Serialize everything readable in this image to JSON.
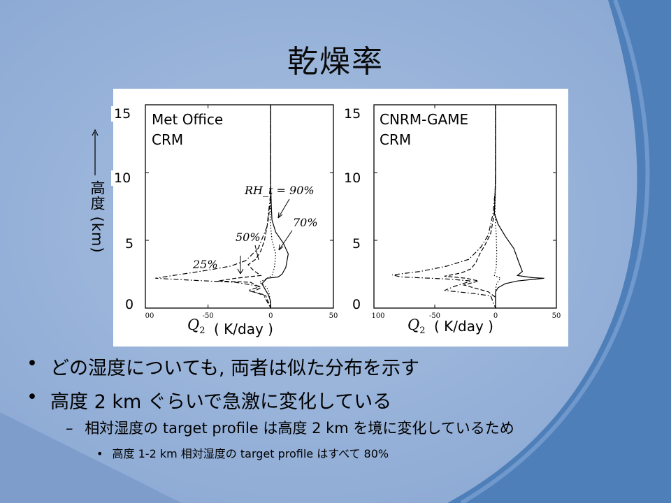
{
  "slide": {
    "title": "乾燥率",
    "colors": {
      "background": "#8aa7d2",
      "swoosh": "#4f7fb9",
      "panel": "#ffffff"
    }
  },
  "figure": {
    "y_axis_label": "高度 (km)",
    "y_axis_arrow_icon": "up-arrow",
    "x_axis_symbol": "Q",
    "x_axis_symbol_sub": "2",
    "x_axis_unit": "( K/day )",
    "y_ticks": [
      "0",
      "5",
      "10",
      "15"
    ]
  },
  "chart_data": [
    {
      "type": "line",
      "panel_label": "Met Office\nCRM",
      "xlabel": "Q2 ( K/day )",
      "ylabel": "高度 (km)",
      "xlim": [
        -100,
        50
      ],
      "ylim": [
        0,
        15
      ],
      "x_ticks": [
        "00",
        "-50",
        "0",
        "50"
      ],
      "y_ticks": [
        0,
        5,
        10,
        15
      ],
      "annotations": [
        "RH_t = 90%",
        "70%",
        "50%",
        "25%"
      ],
      "series": [
        {
          "name": "90%",
          "style": "solid",
          "points": [
            [
              0,
              15
            ],
            [
              0,
              9.0
            ],
            [
              0.5,
              7.5
            ],
            [
              1,
              6.5
            ],
            [
              4,
              5.6
            ],
            [
              10,
              4.8
            ],
            [
              14,
              4.0
            ],
            [
              12,
              3.0
            ],
            [
              9,
              2.5
            ],
            [
              6,
              2.3
            ],
            [
              -3,
              2.2
            ],
            [
              -5,
              2.0
            ],
            [
              -7,
              1.8
            ],
            [
              -4,
              1.3
            ],
            [
              -2,
              1.0
            ],
            [
              0,
              0.5
            ],
            [
              0,
              0
            ]
          ]
        },
        {
          "name": "70%",
          "style": "dotted",
          "points": [
            [
              0,
              15
            ],
            [
              0,
              8.0
            ],
            [
              -0.5,
              6.5
            ],
            [
              1,
              5.0
            ],
            [
              4,
              4.0
            ],
            [
              3,
              3.0
            ],
            [
              1,
              2.4
            ],
            [
              -3,
              2.2
            ],
            [
              -9,
              1.9
            ],
            [
              -3,
              1.5
            ],
            [
              -1,
              1.0
            ],
            [
              0,
              0
            ]
          ]
        },
        {
          "name": "50%",
          "style": "dashed",
          "points": [
            [
              0,
              15
            ],
            [
              0,
              8.0
            ],
            [
              -2,
              6.5
            ],
            [
              -5,
              5.0
            ],
            [
              -8,
              4.2
            ],
            [
              -12,
              3.6
            ],
            [
              -18,
              3.2
            ],
            [
              -14,
              2.8
            ],
            [
              -8,
              2.4
            ],
            [
              -28,
              2.2
            ],
            [
              -42,
              2.0
            ],
            [
              -16,
              1.9
            ],
            [
              -8,
              1.5
            ],
            [
              -14,
              1.2
            ],
            [
              -4,
              0.9
            ],
            [
              0,
              0
            ]
          ]
        },
        {
          "name": "25%",
          "style": "dash-dot",
          "points": [
            [
              0,
              15
            ],
            [
              0,
              8.5
            ],
            [
              -3,
              6.0
            ],
            [
              -10,
              4.4
            ],
            [
              -20,
              3.5
            ],
            [
              -32,
              3.1
            ],
            [
              -50,
              2.8
            ],
            [
              -78,
              2.4
            ],
            [
              -92,
              2.2
            ],
            [
              -62,
              2.05
            ],
            [
              -28,
              1.9
            ],
            [
              -8,
              1.6
            ],
            [
              -18,
              1.3
            ],
            [
              -6,
              1.0
            ],
            [
              0,
              0
            ]
          ]
        }
      ]
    },
    {
      "type": "line",
      "panel_label": "CNRM-GAME\nCRM",
      "xlabel": "Q2 ( K/day )",
      "ylabel": "高度 (km)",
      "xlim": [
        -100,
        50
      ],
      "ylim": [
        0,
        15
      ],
      "x_ticks": [
        "100",
        "-50",
        "0",
        "50"
      ],
      "y_ticks": [
        0,
        5,
        10,
        15
      ],
      "series": [
        {
          "name": "90%",
          "style": "solid",
          "points": [
            [
              0,
              15
            ],
            [
              0,
              10.0
            ],
            [
              -0.5,
              8.0
            ],
            [
              -1,
              7.0
            ],
            [
              2,
              6.2
            ],
            [
              8,
              5.3
            ],
            [
              15,
              4.4
            ],
            [
              19,
              3.4
            ],
            [
              22,
              2.7
            ],
            [
              18,
              2.4
            ],
            [
              30,
              2.25
            ],
            [
              40,
              2.2
            ],
            [
              18,
              2.0
            ],
            [
              8,
              1.8
            ],
            [
              2,
              1.5
            ],
            [
              0,
              1.2
            ],
            [
              0,
              0
            ]
          ]
        },
        {
          "name": "70%",
          "style": "dotted",
          "points": [
            [
              0,
              15
            ],
            [
              0,
              9.0
            ],
            [
              -0.5,
              7.0
            ],
            [
              0.5,
              5.5
            ],
            [
              1,
              4.0
            ],
            [
              0.5,
              3.0
            ],
            [
              -1,
              2.4
            ],
            [
              4,
              2.2
            ],
            [
              1,
              1.8
            ],
            [
              0,
              1.4
            ],
            [
              0,
              0
            ]
          ]
        },
        {
          "name": "50%",
          "style": "dashed",
          "points": [
            [
              0,
              15
            ],
            [
              0,
              9.5
            ],
            [
              -1,
              7.0
            ],
            [
              -4,
              5.5
            ],
            [
              -9,
              4.6
            ],
            [
              -13,
              4.0
            ],
            [
              -16,
              3.4
            ],
            [
              -20,
              2.9
            ],
            [
              -28,
              2.6
            ],
            [
              -42,
              2.35
            ],
            [
              -24,
              2.2
            ],
            [
              -14,
              2.0
            ],
            [
              -26,
              1.7
            ],
            [
              -14,
              1.4
            ],
            [
              -6,
              1.2
            ],
            [
              0,
              0.8
            ],
            [
              0,
              0
            ]
          ]
        },
        {
          "name": "25%",
          "style": "dash-dot",
          "points": [
            [
              0,
              15
            ],
            [
              0,
              9.0
            ],
            [
              -2,
              7.0
            ],
            [
              -6,
              5.4
            ],
            [
              -12,
              4.5
            ],
            [
              -22,
              3.6
            ],
            [
              -40,
              3.1
            ],
            [
              -62,
              2.7
            ],
            [
              -85,
              2.45
            ],
            [
              -78,
              2.3
            ],
            [
              -40,
              2.15
            ],
            [
              -20,
              2.0
            ],
            [
              -34,
              1.6
            ],
            [
              -42,
              1.3
            ],
            [
              -20,
              1.1
            ],
            [
              -4,
              0.9
            ],
            [
              0,
              0
            ]
          ]
        }
      ]
    }
  ],
  "bullets": [
    {
      "level": 1,
      "text": "どの湿度についても, 両者は似た分布を示す"
    },
    {
      "level": 1,
      "text": "高度 2 km ぐらいで急激に変化している"
    },
    {
      "level": 2,
      "text": "相対湿度の target profile は高度 2 km を境に変化しているため"
    },
    {
      "level": 3,
      "text": "高度 1-2 km 相対湿度の target profile はすべて 80%"
    }
  ],
  "bullet_glyphs": {
    "level1": "•",
    "level2": "–",
    "level3": "•"
  }
}
